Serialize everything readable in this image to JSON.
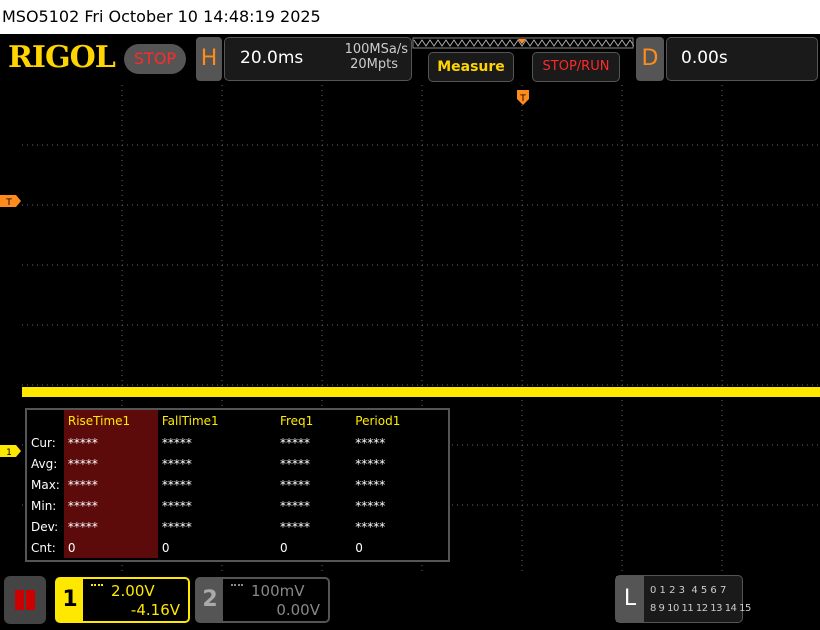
{
  "header": {
    "title": "MSO5102  Fri October 10 14:48:19 2025"
  },
  "toolbar": {
    "logo": "RIGOL",
    "stop": "STOP",
    "h_label": "H",
    "timebase": "20.0ms",
    "sample_rate": "100MSa/s",
    "memory": "20Mpts",
    "measure": "Measure",
    "stop_run": "STOP/RUN",
    "d_label": "D",
    "delay": "0.00s"
  },
  "markers": {
    "trigger_top": "T",
    "trigger_level": "T",
    "channel": "1"
  },
  "measure": {
    "columns": [
      "RiseTime1",
      "FallTime1",
      "Freq1",
      "Period1"
    ],
    "rows": [
      [
        "Cur:",
        "*****",
        "*****",
        "*****",
        "*****"
      ],
      [
        "Avg:",
        "*****",
        "*****",
        "*****",
        "*****"
      ],
      [
        "Max:",
        "*****",
        "*****",
        "*****",
        "*****"
      ],
      [
        "Min:",
        "*****",
        "*****",
        "*****",
        "*****"
      ],
      [
        "Dev:",
        "*****",
        "*****",
        "*****",
        "*****"
      ],
      [
        "Cnt:",
        "0",
        "0",
        "0",
        "0"
      ]
    ]
  },
  "channels": [
    {
      "number": "1",
      "scale": "2.00V",
      "offset": "-4.16V"
    },
    {
      "number": "2",
      "scale": "100mV",
      "offset": "0.00V"
    }
  ],
  "logic": {
    "label": "L",
    "row1": "0 1 2 3  4 5 6 7",
    "row2": "8 9 10 11 12 13 14 15"
  }
}
